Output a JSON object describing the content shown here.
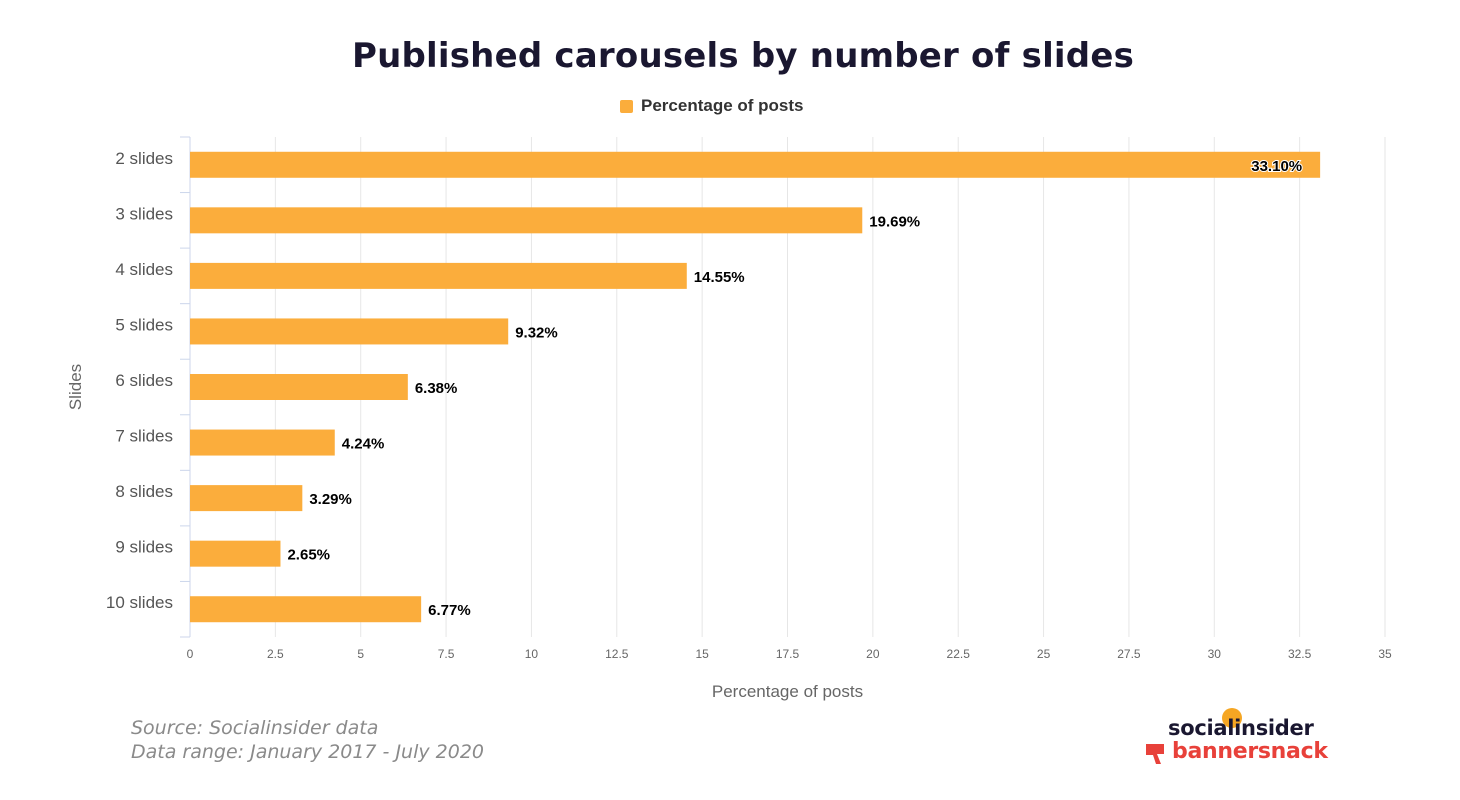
{
  "chart_data": {
    "type": "bar",
    "orientation": "horizontal",
    "title": "Published carousels by number of slides",
    "xlabel": "Percentage of posts",
    "ylabel": "Slides",
    "categories": [
      "2 slides",
      "3 slides",
      "4 slides",
      "5 slides",
      "6 slides",
      "7 slides",
      "8 slides",
      "9 slides",
      "10 slides"
    ],
    "series": [
      {
        "name": "Percentage of posts",
        "values": [
          33.1,
          19.69,
          14.55,
          9.32,
          6.38,
          4.24,
          3.29,
          2.65,
          6.77
        ],
        "data_labels": [
          "33.10%",
          "19.69%",
          "14.55%",
          "9.32%",
          "6.38%",
          "4.24%",
          "3.29%",
          "2.65%",
          "6.77%"
        ]
      }
    ],
    "xlim": [
      0,
      35
    ],
    "xticks": [
      "0",
      "2.5",
      "5",
      "7.5",
      "10",
      "12.5",
      "15",
      "17.5",
      "20",
      "22.5",
      "25",
      "27.5",
      "30",
      "32.5",
      "35"
    ],
    "grid": true,
    "legend_position": "top-center",
    "bar_color": "#fbad3c"
  },
  "footer": {
    "source": "Source: Socialinsider data",
    "range": "Data range: January 2017 - July 2020"
  },
  "logos": {
    "socialinsider": "socialinsider",
    "bannersnack": "bannersnack",
    "bannersnack_color": "#e8413a"
  }
}
